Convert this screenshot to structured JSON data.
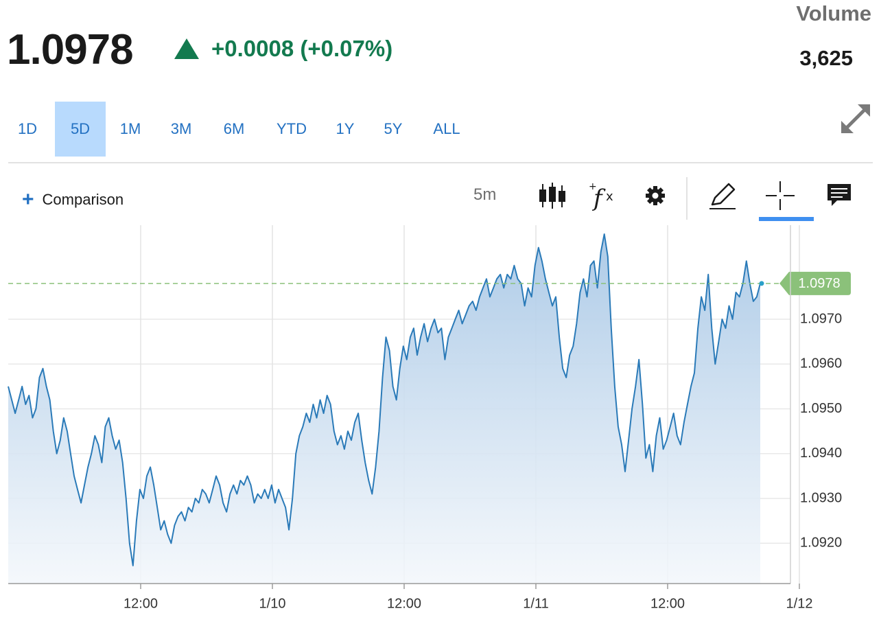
{
  "quote": {
    "price": "1.0978",
    "change": "+0.0008 (+0.07%)",
    "direction": "up",
    "up_color": "#137a4f"
  },
  "volume": {
    "label": "Volume",
    "value": "3,625"
  },
  "ranges": [
    {
      "label": "1D",
      "active": false
    },
    {
      "label": "5D",
      "active": true
    },
    {
      "label": "1M",
      "active": false
    },
    {
      "label": "3M",
      "active": false
    },
    {
      "label": "6M",
      "active": false
    },
    {
      "label": "YTD",
      "active": false
    },
    {
      "label": "1Y",
      "active": false
    },
    {
      "label": "5Y",
      "active": false
    },
    {
      "label": "ALL",
      "active": false
    }
  ],
  "toolbar": {
    "comparison_label": "Comparison",
    "interval": "5m",
    "icons": [
      "candlestick-icon",
      "studies-fx-icon",
      "gear-icon",
      "pencil-icon",
      "crosshair-icon",
      "comment-icon",
      "expand-icon"
    ]
  },
  "colors": {
    "line": "#2a7ab8",
    "accent": "#2371c2",
    "last_price_badge": "#8bc17a"
  },
  "chart_data": {
    "type": "area",
    "x_ticks": [
      "12:00",
      "1/10",
      "12:00",
      "1/11",
      "12:00",
      "1/12"
    ],
    "y_ticks": [
      "1.0920",
      "1.0930",
      "1.0940",
      "1.0950",
      "1.0960",
      "1.0970"
    ],
    "ylim": [
      1.0911,
      1.0991
    ],
    "last_price": 1.0978,
    "last_price_label": "1.0978",
    "grid": true,
    "series": [
      {
        "values": [
          1.0955,
          1.0952,
          1.0949,
          1.0952,
          1.0955,
          1.0951,
          1.0953,
          1.0948,
          1.095,
          1.0957,
          1.0959,
          1.0955,
          1.0952,
          1.0945,
          1.094,
          1.0943,
          1.0948,
          1.0945,
          1.094,
          1.0935,
          1.0932,
          1.0929,
          1.0933,
          1.0937,
          1.094,
          1.0944,
          1.0942,
          1.0938,
          1.0946,
          1.0948,
          1.0944,
          1.0941,
          1.0943,
          1.0938,
          1.093,
          1.092,
          1.0915,
          1.0925,
          1.0932,
          1.093,
          1.0935,
          1.0937,
          1.0933,
          1.0928,
          1.0923,
          1.0925,
          1.0922,
          1.092,
          1.0924,
          1.0926,
          1.0927,
          1.0925,
          1.0928,
          1.0927,
          1.093,
          1.0929,
          1.0932,
          1.0931,
          1.0929,
          1.0932,
          1.0935,
          1.0933,
          1.0929,
          1.0927,
          1.0931,
          1.0933,
          1.0931,
          1.0934,
          1.0933,
          1.0935,
          1.0933,
          1.0929,
          1.0931,
          1.093,
          1.0932,
          1.093,
          1.0933,
          1.0929,
          1.0932,
          1.093,
          1.0928,
          1.0923,
          1.093,
          1.094,
          1.0944,
          1.0946,
          1.0949,
          1.0947,
          1.0951,
          1.0948,
          1.0952,
          1.0949,
          1.0953,
          1.0951,
          1.0945,
          1.0942,
          1.0944,
          1.0941,
          1.0945,
          1.0943,
          1.0947,
          1.0949,
          1.0943,
          1.0938,
          1.0934,
          1.0931,
          1.0937,
          1.0945,
          1.0957,
          1.0966,
          1.0963,
          1.0955,
          1.0952,
          1.0959,
          1.0964,
          1.0961,
          1.0966,
          1.0968,
          1.0962,
          1.0966,
          1.0969,
          1.0965,
          1.0968,
          1.097,
          1.0967,
          1.0968,
          1.0961,
          1.0966,
          1.0968,
          1.097,
          1.0972,
          1.0969,
          1.0971,
          1.0973,
          1.0974,
          1.0972,
          1.0975,
          1.0977,
          1.0979,
          1.0975,
          1.0977,
          1.0979,
          1.098,
          1.0977,
          1.098,
          1.0979,
          1.0982,
          1.0979,
          1.0978,
          1.0973,
          1.0977,
          1.0975,
          1.0982,
          1.0986,
          1.0983,
          1.0979,
          1.0976,
          1.0973,
          1.0975,
          1.0966,
          1.0959,
          1.0957,
          1.0962,
          1.0964,
          1.0969,
          1.0976,
          1.0979,
          1.0975,
          1.0982,
          1.0983,
          1.0977,
          1.0985,
          1.0989,
          1.0984,
          1.0968,
          1.0955,
          1.0946,
          1.0942,
          1.0936,
          1.0943,
          1.095,
          1.0955,
          1.0961,
          1.0951,
          1.0939,
          1.0942,
          1.0936,
          1.0944,
          1.0948,
          1.0941,
          1.0943,
          1.0946,
          1.0949,
          1.0944,
          1.0942,
          1.0947,
          1.0951,
          1.0955,
          1.0958,
          1.0968,
          1.0975,
          1.0972,
          1.098,
          1.0968,
          1.096,
          1.0965,
          1.097,
          1.0968,
          1.0973,
          1.097,
          1.0976,
          1.0975,
          1.0978,
          1.0983,
          1.0978,
          1.0974,
          1.0975,
          1.0978
        ]
      }
    ]
  }
}
